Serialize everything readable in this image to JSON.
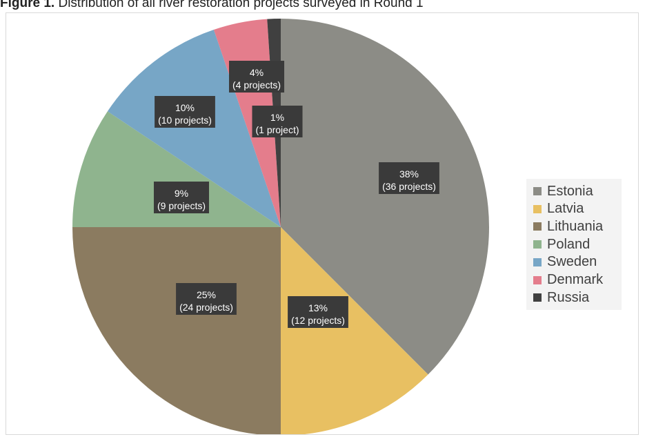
{
  "caption": {
    "bold": "Figure 1.",
    "text": " Distribution of all river restoration projects surveyed in Round 1"
  },
  "chart_data": {
    "type": "pie",
    "categories": [
      "Estonia",
      "Latvia",
      "Lithuania",
      "Poland",
      "Sweden",
      "Denmark",
      "Russia"
    ],
    "values": [
      36,
      12,
      24,
      9,
      10,
      4,
      1
    ],
    "percent_labels": [
      "38%",
      "13%",
      "25%",
      "9%",
      "10%",
      "4%",
      "1%"
    ],
    "count_labels": [
      "(36 projects)",
      "(12 projects)",
      "(24 projects)",
      "(9 projects)",
      "(10 projects)",
      "(4 projects)",
      "(1 project)"
    ],
    "colors": [
      "#8c8c86",
      "#e8c062",
      "#8b7b60",
      "#8fb48e",
      "#77a6c6",
      "#e47d8c",
      "#404040"
    ],
    "legend_placement": "right",
    "start_angle": "12 o'clock",
    "direction": "clockwise"
  }
}
